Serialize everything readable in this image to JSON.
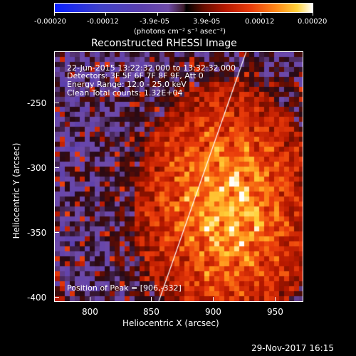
{
  "colorbar": {
    "ticks": [
      "-0.00020",
      "-0.00012",
      "-3.9e-05",
      "3.9e-05",
      "0.00012",
      "0.00020"
    ],
    "unit_label": "(photons cm⁻² s⁻¹ asec⁻²)"
  },
  "plot": {
    "title": "Reconstructed RHESSI Image",
    "xlabel": "Heliocentric X (arcsec)",
    "ylabel": "Heliocentric Y (arcsec)",
    "x_ticks": [
      "800",
      "850",
      "900",
      "950"
    ],
    "y_ticks": [
      "-250",
      "-300",
      "-350",
      "-400"
    ],
    "xlim": [
      772,
      965
    ],
    "ylim": [
      -405,
      -212
    ],
    "info_lines": [
      "22-Jun-2015 13:22:32.000 to 13:32:32.000",
      "Detectors: 3F 5F 6F 7F 8F 9F, Att 0",
      "Energy Range: 12.0 - 25.0 keV",
      "Clean     Total counts: 1.32E+04"
    ],
    "peak_label": "Position of Peak = [906,-332]",
    "peak": {
      "x": 906,
      "y": -332
    },
    "limb_line": {
      "x1": 853,
      "y1": -405,
      "x2": 921,
      "y2": -212
    }
  },
  "footer": {
    "date": "29-Nov-2017 16:15"
  },
  "colors": {
    "background": "#000000",
    "foreground": "#ffffff"
  }
}
